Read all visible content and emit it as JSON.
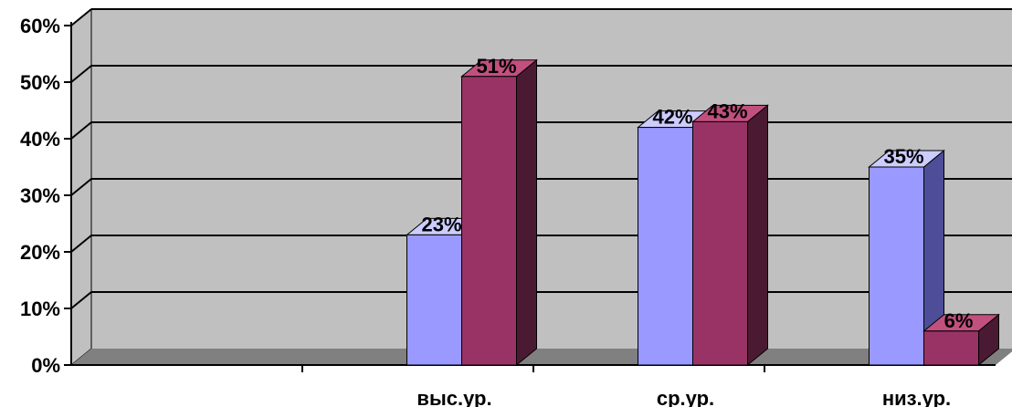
{
  "chart_data": {
    "type": "bar",
    "three_d": true,
    "categories": [
      "",
      "выс.ур.",
      "ср.ур.",
      "низ.ур."
    ],
    "series": [
      {
        "values": [
          null,
          23,
          42,
          35
        ],
        "labels": [
          "",
          "23%",
          "42%",
          "35%"
        ]
      },
      {
        "values": [
          null,
          51,
          43,
          6
        ],
        "labels": [
          "",
          "51%",
          "43%",
          "6%"
        ]
      }
    ],
    "ylim": [
      0,
      60
    ],
    "yticks": [
      "0%",
      "10%",
      "20%",
      "30%",
      "40%",
      "50%",
      "60%"
    ],
    "grid": true,
    "legend": "none",
    "colors": {
      "series1_front": "#9999ff",
      "series1_side": "#4e4e98",
      "series1_top": "#ccccff",
      "series2_front": "#993366",
      "series2_side": "#4a1a32",
      "series2_top": "#c2507e",
      "wall": "#c0c0c0",
      "floor": "#808080",
      "grid": "#000000"
    }
  }
}
